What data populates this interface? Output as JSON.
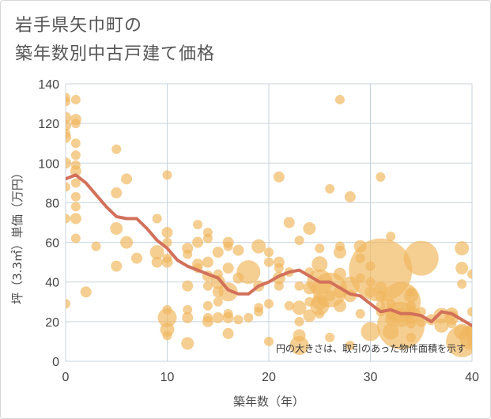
{
  "title_line1": "岩手県矢巾町の",
  "title_line2": "築年数別中古戸建て価格",
  "chart_data": {
    "type": "scatter",
    "xlabel": "築年数（年）",
    "ylabel": "坪（3.3㎡）単価（万円）",
    "xlim": [
      0,
      40
    ],
    "ylim": [
      0,
      140
    ],
    "x_ticks": [
      "0",
      "10",
      "20",
      "30",
      "40"
    ],
    "y_ticks": [
      "0",
      "20",
      "40",
      "60",
      "80",
      "100",
      "120",
      "140"
    ],
    "grid": true,
    "annotation": "円の大きさは、取引のあった物件面積を示す",
    "colors": {
      "bubble": "#f0b75e",
      "line": "#d2705a",
      "grid": "#c9d3de"
    },
    "trend": {
      "x": [
        0,
        1,
        2,
        3,
        4,
        5,
        6,
        7,
        8,
        9,
        10,
        11,
        12,
        13,
        14,
        15,
        16,
        17,
        18,
        19,
        20,
        21,
        22,
        23,
        24,
        25,
        26,
        27,
        28,
        29,
        30,
        31,
        32,
        33,
        34,
        35,
        36,
        37,
        38,
        39,
        40
      ],
      "y": [
        92,
        94,
        90,
        84,
        78,
        73,
        72,
        72,
        67,
        61,
        57,
        51,
        48,
        46,
        44,
        42,
        36,
        34,
        34,
        38,
        40,
        43,
        45,
        46,
        43,
        40,
        40,
        37,
        34,
        33,
        29,
        25,
        26,
        24,
        24,
        23,
        20,
        25,
        24,
        21,
        18
      ]
    },
    "points": [
      [
        0,
        133,
        6
      ],
      [
        0,
        131,
        6
      ],
      [
        0,
        123,
        7
      ],
      [
        0,
        119,
        7
      ],
      [
        0,
        115,
        6
      ],
      [
        0,
        113,
        7
      ],
      [
        0,
        100,
        7
      ],
      [
        0,
        88,
        6
      ],
      [
        0,
        72,
        6
      ],
      [
        0,
        29,
        6
      ],
      [
        1,
        132,
        6
      ],
      [
        1,
        122,
        7
      ],
      [
        1,
        120,
        6
      ],
      [
        1,
        110,
        6
      ],
      [
        1,
        104,
        6
      ],
      [
        1,
        99,
        6
      ],
      [
        1,
        96,
        7
      ],
      [
        1,
        90,
        6
      ],
      [
        1,
        83,
        6
      ],
      [
        1,
        78,
        6
      ],
      [
        1,
        72,
        7
      ],
      [
        1,
        62,
        6
      ],
      [
        2,
        35,
        7
      ],
      [
        3,
        58,
        6
      ],
      [
        5,
        107,
        6
      ],
      [
        5,
        85,
        7
      ],
      [
        5,
        67,
        8
      ],
      [
        5,
        48,
        7
      ],
      [
        6,
        92,
        7
      ],
      [
        6,
        60,
        8
      ],
      [
        7,
        52,
        7
      ],
      [
        9,
        72,
        6
      ],
      [
        9,
        55,
        9
      ],
      [
        9,
        50,
        7
      ],
      [
        10,
        94,
        6
      ],
      [
        10,
        65,
        7
      ],
      [
        10,
        60,
        6
      ],
      [
        10,
        52,
        6
      ],
      [
        10,
        50,
        7
      ],
      [
        10,
        26,
        6
      ],
      [
        10,
        22,
        12
      ],
      [
        10,
        16,
        9
      ],
      [
        10,
        13,
        6
      ],
      [
        12,
        57,
        7
      ],
      [
        12,
        54,
        6
      ],
      [
        12,
        38,
        7
      ],
      [
        12,
        26,
        6
      ],
      [
        12,
        22,
        7
      ],
      [
        12,
        9,
        8
      ],
      [
        13,
        69,
        6
      ],
      [
        13,
        60,
        7
      ],
      [
        13,
        49,
        7
      ],
      [
        13,
        47,
        6
      ],
      [
        14,
        65,
        6
      ],
      [
        14,
        62,
        6
      ],
      [
        14,
        50,
        7
      ],
      [
        14,
        43,
        7
      ],
      [
        14,
        38,
        6
      ],
      [
        14,
        28,
        6
      ],
      [
        14,
        22,
        6
      ],
      [
        14,
        20,
        7
      ],
      [
        15,
        55,
        7
      ],
      [
        15,
        44,
        6
      ],
      [
        15,
        40,
        9
      ],
      [
        15,
        35,
        7
      ],
      [
        15,
        30,
        6
      ],
      [
        15,
        22,
        7
      ],
      [
        16,
        60,
        7
      ],
      [
        16,
        58,
        6
      ],
      [
        16,
        47,
        7
      ],
      [
        16,
        35,
        12
      ],
      [
        16,
        24,
        6
      ],
      [
        16,
        22,
        7
      ],
      [
        16,
        14,
        7
      ],
      [
        17,
        56,
        7
      ],
      [
        17,
        42,
        7
      ],
      [
        17,
        21,
        6
      ],
      [
        18,
        45,
        15
      ],
      [
        18,
        22,
        6
      ],
      [
        19,
        58,
        9
      ],
      [
        19,
        38,
        7
      ],
      [
        19,
        27,
        6
      ],
      [
        19,
        25,
        6
      ],
      [
        20,
        55,
        6
      ],
      [
        20,
        50,
        6
      ],
      [
        20,
        29,
        6
      ],
      [
        20,
        10,
        6
      ],
      [
        21,
        93,
        7
      ],
      [
        21,
        50,
        7
      ],
      [
        21,
        47,
        6
      ],
      [
        21,
        42,
        8
      ],
      [
        21,
        38,
        6
      ],
      [
        22,
        70,
        7
      ],
      [
        22,
        45,
        6
      ],
      [
        22,
        28,
        6
      ],
      [
        23,
        61,
        6
      ],
      [
        23,
        38,
        6
      ],
      [
        23,
        27,
        9
      ],
      [
        23,
        20,
        6
      ],
      [
        23,
        13,
        8
      ],
      [
        23,
        8,
        12
      ],
      [
        24,
        67,
        8
      ],
      [
        24,
        45,
        6
      ],
      [
        24,
        37,
        8
      ],
      [
        24,
        30,
        6
      ],
      [
        24,
        23,
        8
      ],
      [
        25,
        57,
        6
      ],
      [
        25,
        49,
        10
      ],
      [
        25,
        40,
        16
      ],
      [
        25,
        30,
        10
      ],
      [
        25,
        28,
        12
      ],
      [
        25,
        24,
        6
      ],
      [
        26,
        87,
        6
      ],
      [
        26,
        36,
        22
      ],
      [
        26,
        33,
        7
      ],
      [
        26,
        12,
        6
      ],
      [
        27,
        132,
        6
      ],
      [
        27,
        58,
        6
      ],
      [
        27,
        55,
        8
      ],
      [
        27,
        44,
        8
      ],
      [
        27,
        35,
        8
      ],
      [
        27,
        28,
        8
      ],
      [
        28,
        83,
        7
      ],
      [
        28,
        38,
        12
      ],
      [
        28,
        33,
        8
      ],
      [
        28,
        8,
        6
      ],
      [
        29,
        58,
        8
      ],
      [
        29,
        52,
        6
      ],
      [
        29,
        42,
        6
      ],
      [
        29,
        24,
        6
      ],
      [
        30,
        48,
        6
      ],
      [
        30,
        40,
        6
      ],
      [
        30,
        35,
        7
      ],
      [
        30,
        15,
        12
      ],
      [
        31,
        93,
        6
      ],
      [
        31,
        46,
        40
      ],
      [
        31,
        37,
        8
      ],
      [
        31,
        33,
        7
      ],
      [
        31,
        28,
        6
      ],
      [
        31,
        25,
        6
      ],
      [
        32,
        63,
        6
      ],
      [
        32,
        29,
        6
      ],
      [
        32,
        23,
        6
      ],
      [
        32,
        21,
        7
      ],
      [
        32,
        15,
        10
      ],
      [
        33,
        30,
        25
      ],
      [
        33,
        22,
        12
      ],
      [
        33,
        18,
        30
      ],
      [
        34,
        35,
        6
      ],
      [
        34,
        33,
        9
      ],
      [
        34,
        28,
        6
      ],
      [
        34,
        25,
        6
      ],
      [
        34,
        22,
        8
      ],
      [
        34,
        19,
        6
      ],
      [
        34,
        12,
        6
      ],
      [
        35,
        52,
        22
      ],
      [
        35,
        25,
        6
      ],
      [
        35,
        20,
        7
      ],
      [
        36,
        21,
        7
      ],
      [
        37,
        18,
        9
      ],
      [
        37,
        23,
        10
      ],
      [
        38,
        24,
        8
      ],
      [
        38,
        22,
        9
      ],
      [
        38,
        19,
        6
      ],
      [
        39,
        57,
        9
      ],
      [
        39,
        47,
        8
      ],
      [
        39,
        39,
        6
      ],
      [
        39,
        15,
        10
      ],
      [
        39,
        10,
        20
      ],
      [
        40,
        44,
        6
      ],
      [
        40,
        25,
        6
      ],
      [
        40,
        15,
        9
      ],
      [
        40,
        12,
        16
      ],
      [
        40,
        10,
        6
      ]
    ]
  }
}
